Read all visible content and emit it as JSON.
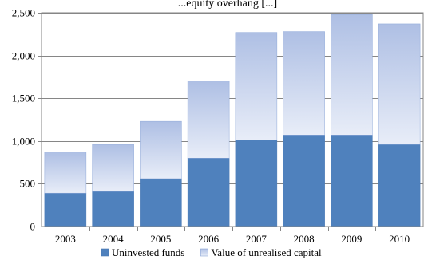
{
  "chart_data": {
    "type": "bar",
    "stacked": true,
    "title": "...equity overhang [...]",
    "categories": [
      "2003",
      "2004",
      "2005",
      "2006",
      "2007",
      "2008",
      "2009",
      "2010"
    ],
    "series": [
      {
        "name": "Uninvested funds",
        "values": [
          390,
          410,
          560,
          800,
          1010,
          1070,
          1070,
          960
        ],
        "color": "#4f81bd"
      },
      {
        "name": "Value of unrealised capital",
        "values": [
          480,
          550,
          670,
          900,
          1260,
          1210,
          1410,
          1410
        ],
        "color_top": "#aebfe4",
        "color_bottom": "#e8edf8"
      }
    ],
    "ylim": [
      0,
      2500
    ],
    "yticks": [
      0,
      500,
      1000,
      1500,
      2000,
      2500
    ],
    "ytick_labels": [
      "0",
      "500",
      "1,000",
      "1,500",
      "2,000",
      "2,500"
    ],
    "grid": true,
    "legend_position": "bottom"
  }
}
